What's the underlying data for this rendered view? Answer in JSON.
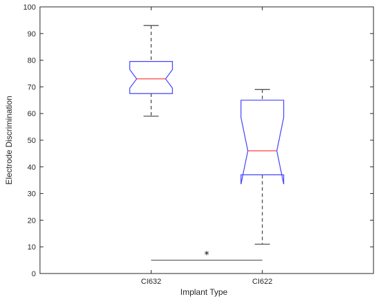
{
  "chart_data": {
    "type": "box",
    "xlabel": "Implant Type",
    "ylabel": "Electrode Discrimination",
    "categories": [
      "CI632",
      "CI622"
    ],
    "ylim": [
      0,
      100
    ],
    "yticks": [
      0,
      10,
      20,
      30,
      40,
      50,
      60,
      70,
      80,
      90,
      100
    ],
    "grid": false,
    "notched": true,
    "boxes": [
      {
        "category": "CI632",
        "whisker_low": 59,
        "q1": 67.5,
        "median": 73,
        "q3": 79.5,
        "whisker_high": 93,
        "notch_low": 69.5,
        "notch_high": 76.5
      },
      {
        "category": "CI622",
        "whisker_low": 11,
        "q1": 37,
        "median": 46,
        "q3": 65,
        "whisker_high": 69,
        "notch_low": 33.5,
        "notch_high": 58.5
      }
    ],
    "significance": {
      "from": "CI632",
      "to": "CI622",
      "y": 5,
      "marker": "*"
    },
    "colors": {
      "box": "#4040ff",
      "median": "#ff4040",
      "whisker": "#404040",
      "axis": "#262626"
    }
  }
}
